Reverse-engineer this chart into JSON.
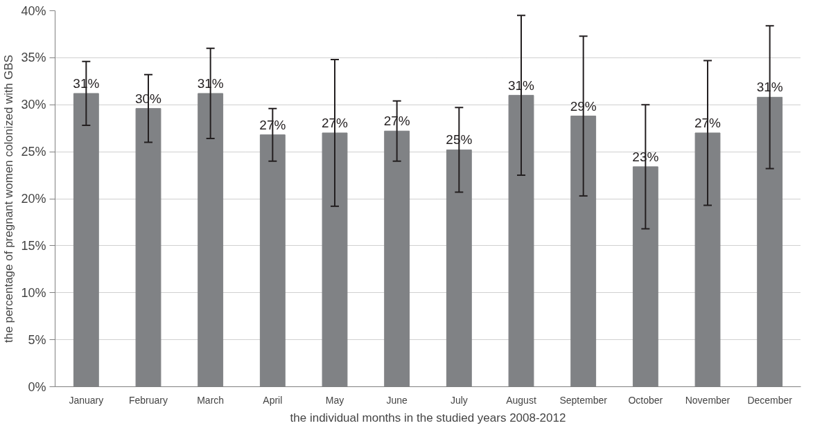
{
  "chart_data": {
    "type": "bar",
    "xlabel": "the individual months in the studied years 2008-2012",
    "ylabel": "the percentage of pregnant women colonized with GBS",
    "categories": [
      "January",
      "February",
      "March",
      "April",
      "May",
      "June",
      "July",
      "August",
      "September",
      "October",
      "November",
      "December"
    ],
    "values": [
      31.2,
      29.6,
      31.2,
      26.8,
      27.0,
      27.2,
      25.2,
      31.0,
      28.8,
      23.4,
      27.0,
      30.8
    ],
    "errors": [
      [
        27.8,
        34.6
      ],
      [
        26.0,
        33.2
      ],
      [
        26.4,
        36.0
      ],
      [
        24.0,
        29.6
      ],
      [
        19.2,
        34.8
      ],
      [
        24.0,
        30.4
      ],
      [
        20.7,
        29.7
      ],
      [
        22.5,
        39.5
      ],
      [
        20.3,
        37.3
      ],
      [
        16.8,
        30.0
      ],
      [
        19.3,
        34.7
      ],
      [
        23.2,
        38.4
      ]
    ],
    "value_labels": [
      "31%",
      "30%",
      "31%",
      "27%",
      "27%",
      "27%",
      "25%",
      "31%",
      "29%",
      "23%",
      "27%",
      "31%"
    ],
    "color": "#808285",
    "ylim": [
      0,
      40
    ],
    "yticks": [
      {
        "value": 0,
        "label": "0%"
      },
      {
        "value": 5,
        "label": "5%"
      },
      {
        "value": 10,
        "label": "10%"
      },
      {
        "value": 15,
        "label": "15%"
      },
      {
        "value": 20,
        "label": "20%"
      },
      {
        "value": 25,
        "label": "25%"
      },
      {
        "value": 30,
        "label": "30%"
      },
      {
        "value": 35,
        "label": "35%"
      },
      {
        "value": 40,
        "label": "40%"
      }
    ],
    "grid": "y"
  }
}
